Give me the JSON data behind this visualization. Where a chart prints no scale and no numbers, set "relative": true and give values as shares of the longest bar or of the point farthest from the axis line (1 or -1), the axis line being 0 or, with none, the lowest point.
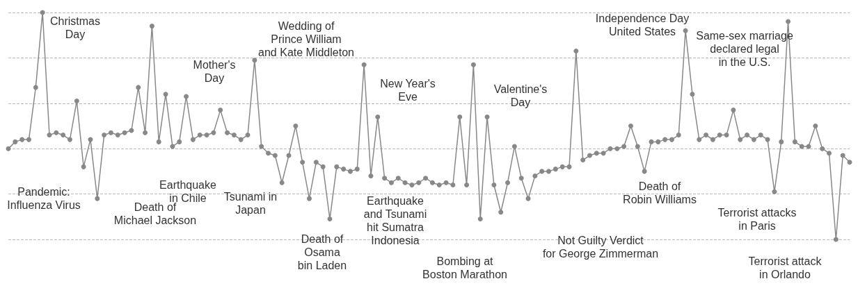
{
  "chart_data": {
    "type": "line",
    "relative": true,
    "grid": "y",
    "marker": "circle",
    "line_style": "solid",
    "categories": [
      null,
      null,
      null,
      null,
      null,
      null,
      null,
      null,
      null,
      null,
      null,
      null,
      null,
      null,
      null,
      null,
      null,
      null,
      null,
      null,
      null,
      null,
      null,
      null,
      null,
      null,
      null,
      null,
      null,
      null,
      null,
      null,
      null,
      null,
      null,
      null,
      null,
      null,
      null,
      null,
      null,
      null,
      null,
      null,
      null,
      null,
      null,
      null,
      null,
      null,
      null,
      null,
      null,
      null,
      null,
      null,
      null,
      null,
      null,
      null,
      null,
      null,
      null,
      null,
      null,
      null,
      null,
      null,
      null,
      null,
      null,
      null,
      null,
      null,
      null,
      null,
      null,
      null,
      null,
      null,
      null,
      null,
      null,
      null,
      null,
      null,
      null,
      null,
      null,
      null,
      null,
      null,
      null,
      null,
      null,
      null,
      null,
      null,
      null,
      null,
      null,
      null,
      null,
      null,
      null,
      null,
      null,
      null,
      null,
      null,
      null,
      null,
      null,
      null,
      null,
      null,
      null,
      null,
      null,
      null,
      null,
      null,
      null,
      null
    ],
    "series": [
      {
        "color": "#888888",
        "values": [
          0.4,
          0.43,
          0.44,
          0.44,
          0.67,
          1.0,
          0.46,
          0.47,
          0.46,
          0.44,
          0.61,
          0.32,
          0.44,
          0.18,
          0.46,
          0.47,
          0.46,
          0.47,
          0.48,
          0.67,
          0.47,
          0.94,
          0.43,
          0.64,
          0.41,
          0.43,
          0.63,
          0.44,
          0.46,
          0.46,
          0.47,
          0.57,
          0.47,
          0.46,
          0.44,
          0.46,
          0.79,
          0.41,
          0.38,
          0.37,
          0.25,
          0.37,
          0.5,
          0.34,
          0.18,
          0.34,
          0.32,
          0.09,
          0.32,
          0.31,
          0.3,
          0.31,
          0.77,
          0.28,
          0.54,
          0.27,
          0.25,
          0.27,
          0.25,
          0.24,
          0.25,
          0.27,
          0.25,
          0.24,
          0.25,
          0.24,
          0.54,
          0.24,
          0.77,
          0.09,
          0.54,
          0.24,
          0.12,
          0.25,
          0.41,
          0.27,
          0.18,
          0.28,
          0.3,
          0.3,
          0.31,
          0.32,
          0.32,
          0.83,
          0.35,
          0.37,
          0.38,
          0.38,
          0.4,
          0.4,
          0.41,
          0.5,
          0.41,
          0.3,
          0.43,
          0.43,
          0.44,
          0.44,
          0.46,
          0.92,
          0.64,
          0.44,
          0.46,
          0.44,
          0.46,
          0.46,
          0.57,
          0.44,
          0.46,
          0.44,
          0.46,
          0.44,
          0.21,
          0.43,
          0.96,
          0.43,
          0.41,
          0.41,
          0.5,
          0.4,
          0.38,
          0.0,
          0.37,
          0.34
        ]
      }
    ],
    "annotations": [
      "Christmas\nDay",
      "Pandemic:\nInfluenza Virus",
      "Death of\nMichael Jackson",
      "Earthquake\nin Chile",
      "Mother's\nDay",
      "Wedding of\nPrince William\nand Kate Middleton",
      "Tsunami in\nJapan",
      "Death of\nOsama\nbin Laden",
      "New Year's\nEve",
      "Earthquake\nand Tsunami\nhit Sumatra\nIndonesia",
      "Bombing at\nBoston Marathon",
      "Valentine's\nDay",
      "Not Guilty Verdict\nfor George Zimmerman",
      "Independence Day\nUnited States",
      "Death of\nRobin Williams",
      "Same-sex marriage\ndeclared legal\nin the U.S.",
      "Terrorist attacks\nin Paris",
      "Terrorist attack\nin Orlando"
    ]
  }
}
